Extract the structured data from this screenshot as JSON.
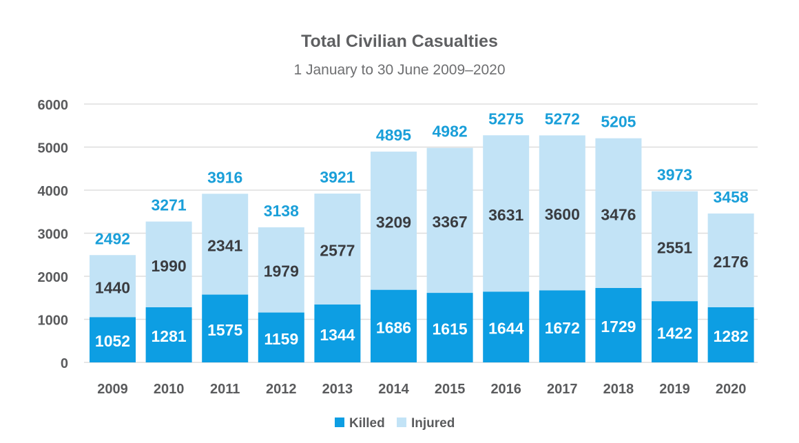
{
  "chart_data": {
    "type": "bar",
    "stacked": true,
    "title": "Total Civilian Casualties",
    "subtitle": "1 January to 30 June 2009–2020",
    "xlabel": "",
    "ylabel": "",
    "ylim": [
      0,
      6000
    ],
    "yticks": [
      0,
      1000,
      2000,
      3000,
      4000,
      5000,
      6000
    ],
    "ytick_labels": [
      "0",
      "1000",
      "2000",
      "3000",
      "4000",
      "5000",
      "6000"
    ],
    "grid": true,
    "legend_position": "bottom-center",
    "categories": [
      "2009",
      "2010",
      "2011",
      "2012",
      "2013",
      "2014",
      "2015",
      "2016",
      "2017",
      "2018",
      "2019",
      "2020"
    ],
    "series": [
      {
        "name": "Killed",
        "color": "#0d9ee3",
        "values": [
          1052,
          1281,
          1575,
          1159,
          1344,
          1686,
          1615,
          1644,
          1672,
          1729,
          1422,
          1282
        ]
      },
      {
        "name": "Injured",
        "color": "#c2e3f6",
        "values": [
          1440,
          1990,
          2341,
          1979,
          2577,
          3209,
          3367,
          3631,
          3600,
          3476,
          2551,
          2176
        ]
      }
    ],
    "totals": [
      2492,
      3271,
      3916,
      3138,
      3921,
      4895,
      4982,
      5275,
      5272,
      5205,
      3973,
      3458
    ],
    "colors": {
      "total_label": "#1a9fd9",
      "gridline": "#dddddd",
      "injured_label": "#3a3c40",
      "killed_label": "#ffffff"
    }
  }
}
